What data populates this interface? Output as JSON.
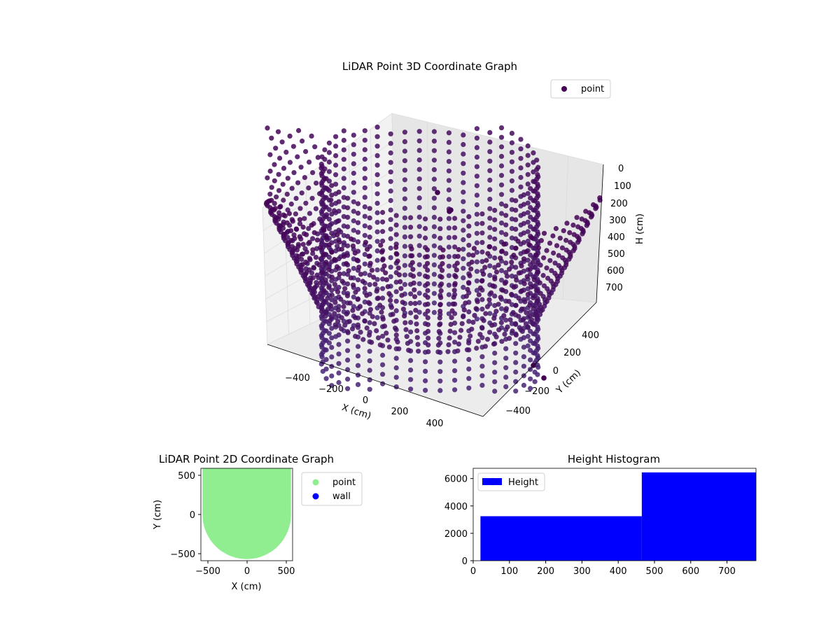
{
  "chart_data": [
    {
      "type": "scatter",
      "projection": "3d",
      "title": "LiDAR Point 3D Coordinate Graph",
      "xlabel": "X (cm)",
      "ylabel": "Y (cm)",
      "zlabel": "H (cm)",
      "xticks": [
        "−400",
        "−200",
        "0",
        "200",
        "400"
      ],
      "yticks": [
        "−400",
        "−200",
        "0",
        "200",
        "400"
      ],
      "zticks": [
        "0",
        "100",
        "200",
        "300",
        "400",
        "500",
        "600",
        "700"
      ],
      "xlim": [
        -550,
        550
      ],
      "ylim": [
        -550,
        550
      ],
      "zlim": [
        780,
        0
      ],
      "z_inverted": true,
      "legend": {
        "position": "upper-right",
        "entries": [
          {
            "name": "point",
            "color": "#440154"
          }
        ]
      },
      "colormap": "viridis",
      "structure": {
        "inner_cylinder_radius_cm": 320,
        "inner_cylinder_height_range_cm": [
          20,
          700
        ],
        "outer_bowl_radius_cm": 540,
        "outer_bowl_height_range_cm": [
          0,
          460
        ]
      }
    },
    {
      "type": "scatter",
      "title": "LiDAR Point 2D Coordinate Graph",
      "xlabel": "X (cm)",
      "ylabel": "Y (cm)",
      "xticks": [
        "−500",
        "0",
        "500"
      ],
      "yticks": [
        "−500",
        "0",
        "500"
      ],
      "xlim": [
        -580,
        580
      ],
      "ylim": [
        -580,
        580
      ],
      "legend": {
        "position": "outside-right",
        "entries": [
          {
            "name": "point",
            "color": "#90ee90"
          },
          {
            "name": "wall",
            "color": "#0000ff"
          }
        ]
      },
      "region": {
        "description_free": true,
        "y_flat_top": 580,
        "circle_center": [
          0,
          0
        ],
        "circle_radius": 560
      }
    },
    {
      "type": "bar",
      "title": "Height Histogram",
      "xticks": [
        "0",
        "100",
        "200",
        "300",
        "400",
        "500",
        "600",
        "700"
      ],
      "yticks": [
        "0",
        "2000",
        "4000",
        "6000"
      ],
      "xlim": [
        0,
        780
      ],
      "ylim": [
        0,
        6750
      ],
      "legend": {
        "position": "upper-left",
        "entries": [
          {
            "name": "Height",
            "color": "#0000ff"
          }
        ]
      },
      "bins": [
        {
          "x0": 20,
          "x1": 465,
          "count": 3250
        },
        {
          "x0": 465,
          "x1": 780,
          "count": 6450
        }
      ]
    }
  ]
}
